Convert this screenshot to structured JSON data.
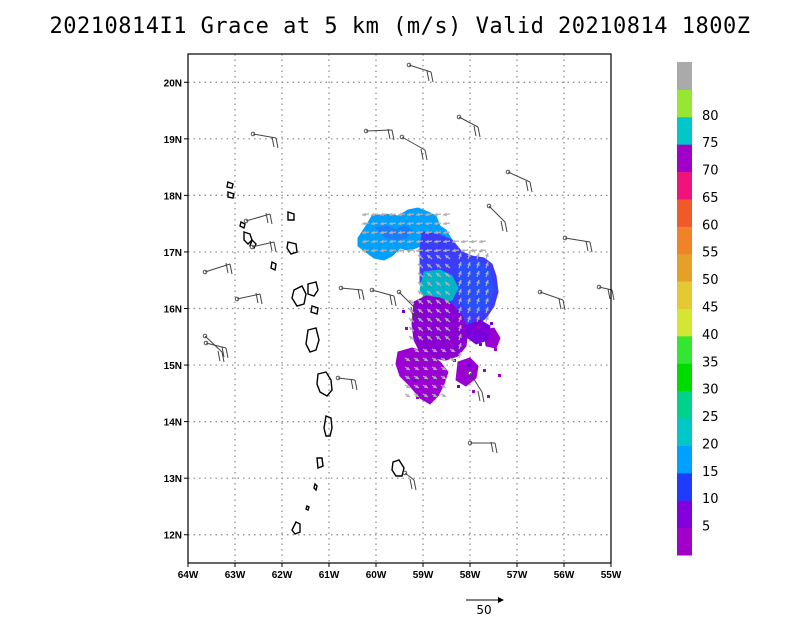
{
  "title": "20210814I1 Grace at 5 km (m/s) Valid 20210814 1800Z",
  "chart_data": {
    "type": "map",
    "lon_range": [
      -64,
      -55
    ],
    "lat_range": [
      11.5,
      20.5
    ],
    "xticks": [
      {
        "value": -64,
        "label": "64W"
      },
      {
        "value": -63,
        "label": "63W"
      },
      {
        "value": -62,
        "label": "62W"
      },
      {
        "value": -61,
        "label": "61W"
      },
      {
        "value": -60,
        "label": "60W"
      },
      {
        "value": -59,
        "label": "59W"
      },
      {
        "value": -58,
        "label": "58W"
      },
      {
        "value": -57,
        "label": "57W"
      },
      {
        "value": -56,
        "label": "56W"
      },
      {
        "value": -55,
        "label": "55W"
      }
    ],
    "yticks": [
      {
        "value": 12,
        "label": "12N"
      },
      {
        "value": 13,
        "label": "13N"
      },
      {
        "value": 14,
        "label": "14N"
      },
      {
        "value": 15,
        "label": "15N"
      },
      {
        "value": 16,
        "label": "16N"
      },
      {
        "value": 17,
        "label": "17N"
      },
      {
        "value": 18,
        "label": "18N"
      },
      {
        "value": 19,
        "label": "19N"
      },
      {
        "value": 20,
        "label": "20N"
      }
    ],
    "grid": true,
    "colorbar": {
      "levels": [
        "5",
        "10",
        "15",
        "20",
        "25",
        "30",
        "35",
        "40",
        "45",
        "50",
        "55",
        "60",
        "65",
        "70",
        "75",
        "80"
      ],
      "colors": [
        "#a000c8",
        "#8200dc",
        "#1e3cff",
        "#00a0ff",
        "#00c8c8",
        "#00d28c",
        "#00dc00",
        "#32e632",
        "#d2e632",
        "#e6c832",
        "#e6a028",
        "#f08228",
        "#f05a28",
        "#f0147a",
        "#a000c8",
        "#00c8c8",
        "#96e632",
        "#aaaaaa"
      ]
    },
    "wind_reference": {
      "label": "50"
    }
  }
}
